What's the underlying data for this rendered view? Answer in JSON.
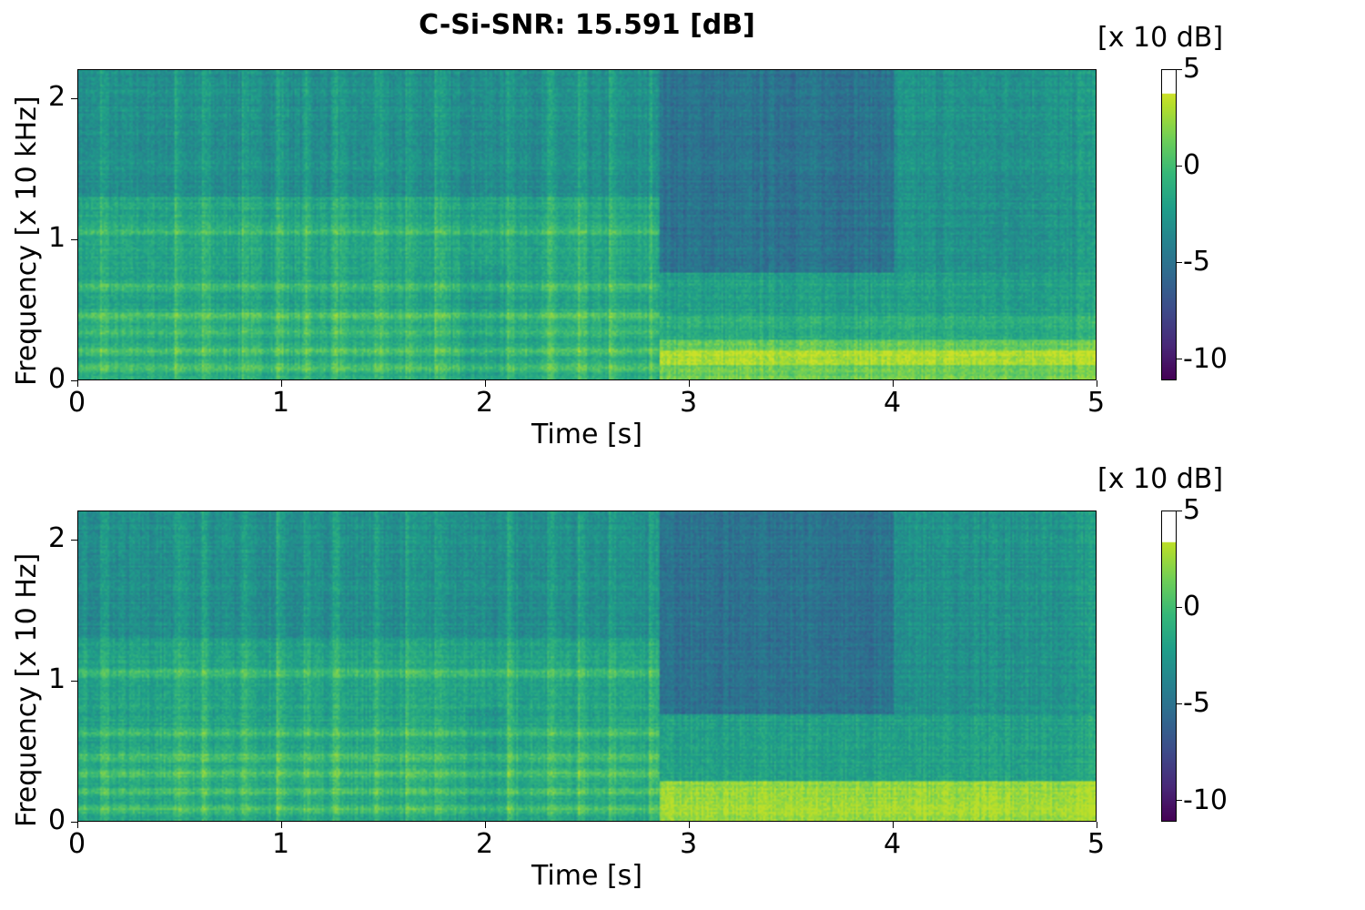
{
  "title": "C-Si-SNR: 15.591 [dB]",
  "chart_data": [
    {
      "type": "heatmap",
      "title": "C-Si-SNR: 15.591 [dB]",
      "xlabel": "Time [s]",
      "ylabel": "Frequency [x 10 kHz]",
      "xlim": [
        0,
        5
      ],
      "ylim": [
        0,
        2.205
      ],
      "xticks": [
        "0",
        "1",
        "2",
        "3",
        "4",
        "5"
      ],
      "yticks": [
        "0",
        "1",
        "2"
      ],
      "colorbar": {
        "label": "[x 10 dB]",
        "ticks": [
          "5",
          "0",
          "-5",
          "-10"
        ],
        "range": [
          -11.1,
          5
        ],
        "data_max": 3.8,
        "colormap": "viridis"
      },
      "features": {
        "onsets_s": [
          0.1,
          0.47,
          0.6,
          0.8,
          0.97,
          1.1,
          1.25,
          1.45,
          1.6,
          1.75,
          2.1,
          2.3,
          2.45,
          2.6,
          2.8
        ],
        "harmonic_bands": [
          0.08,
          0.2,
          0.33,
          0.45,
          0.65,
          1.05
        ],
        "transition_s": 2.85,
        "low_band_level": 3
      }
    },
    {
      "type": "heatmap",
      "title": "",
      "xlabel": "Time [s]",
      "ylabel": "Frequency [x 10 Hz]",
      "xlim": [
        0,
        5
      ],
      "ylim": [
        0,
        2.205
      ],
      "xticks": [
        "0",
        "1",
        "2",
        "3",
        "4",
        "5"
      ],
      "yticks": [
        "0",
        "1",
        "2"
      ],
      "colorbar": {
        "label": "[x 10 dB]",
        "ticks": [
          "5",
          "0",
          "-5",
          "-10"
        ],
        "range": [
          -11.1,
          5
        ],
        "data_max": 3.4,
        "colormap": "viridis"
      },
      "features": {
        "onsets_s": [
          0.1,
          0.47,
          0.6,
          0.8,
          0.97,
          1.1,
          1.25,
          1.45,
          1.6,
          1.75,
          2.1,
          2.3,
          2.45,
          2.6,
          2.8
        ],
        "harmonic_bands": [
          0.08,
          0.2,
          0.33,
          0.45,
          0.62,
          1.05
        ],
        "transition_s": 2.85,
        "low_band_level": 3
      }
    }
  ]
}
